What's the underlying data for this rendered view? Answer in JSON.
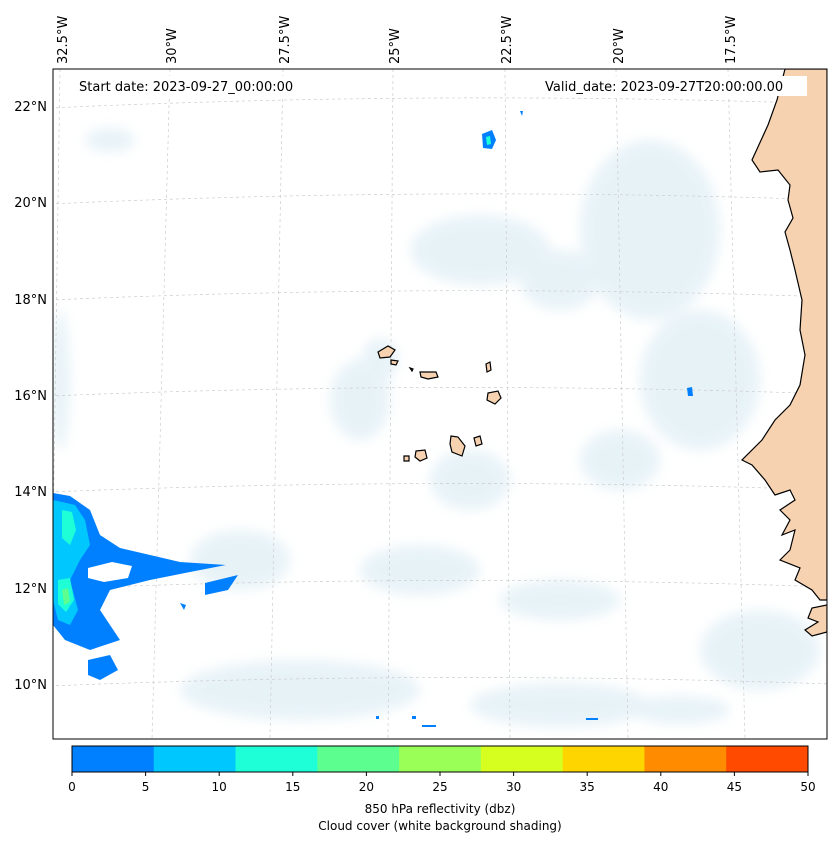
{
  "map": {
    "start_date_label": "Start date: 2023-09-27_00:00:00",
    "valid_date_label": "Valid_date: 2023-09-27T20:00:00.00",
    "lon_labels": [
      "32.5°W",
      "30°W",
      "27.5°W",
      "25°W",
      "22.5°W",
      "20°W",
      "17.5°W"
    ],
    "lat_labels": [
      "22°N",
      "20°N",
      "18°N",
      "16°N",
      "14°N",
      "12°N",
      "10°N"
    ],
    "land_color": "#f6d2b0",
    "ocean_color": "#ffffff",
    "cloud_color": "#d5e9f2"
  },
  "colorbar": {
    "ticks": [
      "0",
      "5",
      "10",
      "15",
      "20",
      "25",
      "30",
      "35",
      "40",
      "45",
      "50"
    ],
    "colors": [
      "#0080ff",
      "#00c8ff",
      "#1effd8",
      "#5cff8f",
      "#9aff57",
      "#d6ff1f",
      "#ffd500",
      "#ff8c00",
      "#ff4a00"
    ],
    "label_line1": "850 hPa reflectivity (dbz)",
    "label_line2": "Cloud cover (white background shading)"
  }
}
